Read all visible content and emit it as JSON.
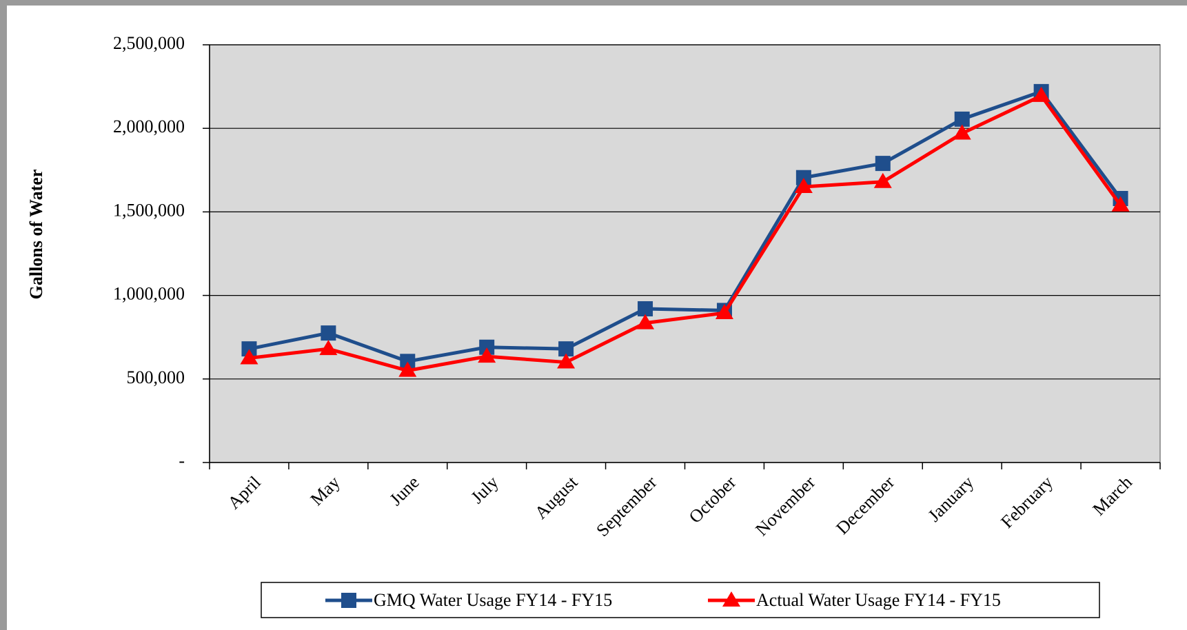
{
  "chart_data": {
    "type": "line",
    "ylabel": "Gallons of Water",
    "categories": [
      "April",
      "May",
      "June",
      "July",
      "August",
      "September",
      "October",
      "November",
      "December",
      "January",
      "February",
      "March"
    ],
    "series": [
      {
        "name": "GMQ Water Usage FY14 - FY15",
        "color": "#1f4e8c",
        "marker": "square",
        "values": [
          680000,
          775000,
          605000,
          690000,
          680000,
          920000,
          910000,
          1705000,
          1790000,
          2055000,
          2220000,
          1580000
        ]
      },
      {
        "name": "Actual Water Usage FY14 - FY15",
        "color": "#ff0000",
        "marker": "triangle",
        "values": [
          625000,
          680000,
          550000,
          635000,
          600000,
          835000,
          895000,
          1650000,
          1680000,
          1970000,
          2195000,
          1540000
        ]
      }
    ],
    "ylim": [
      0,
      2500000
    ],
    "yticks": [
      {
        "value": 0,
        "label": "-"
      },
      {
        "value": 500000,
        "label": "500,000"
      },
      {
        "value": 1000000,
        "label": "1,000,000"
      },
      {
        "value": 1500000,
        "label": "1,500,000"
      },
      {
        "value": 2000000,
        "label": "2,000,000"
      },
      {
        "value": 2500000,
        "label": "2,500,000"
      }
    ],
    "grid": true,
    "legend": "bottom"
  }
}
